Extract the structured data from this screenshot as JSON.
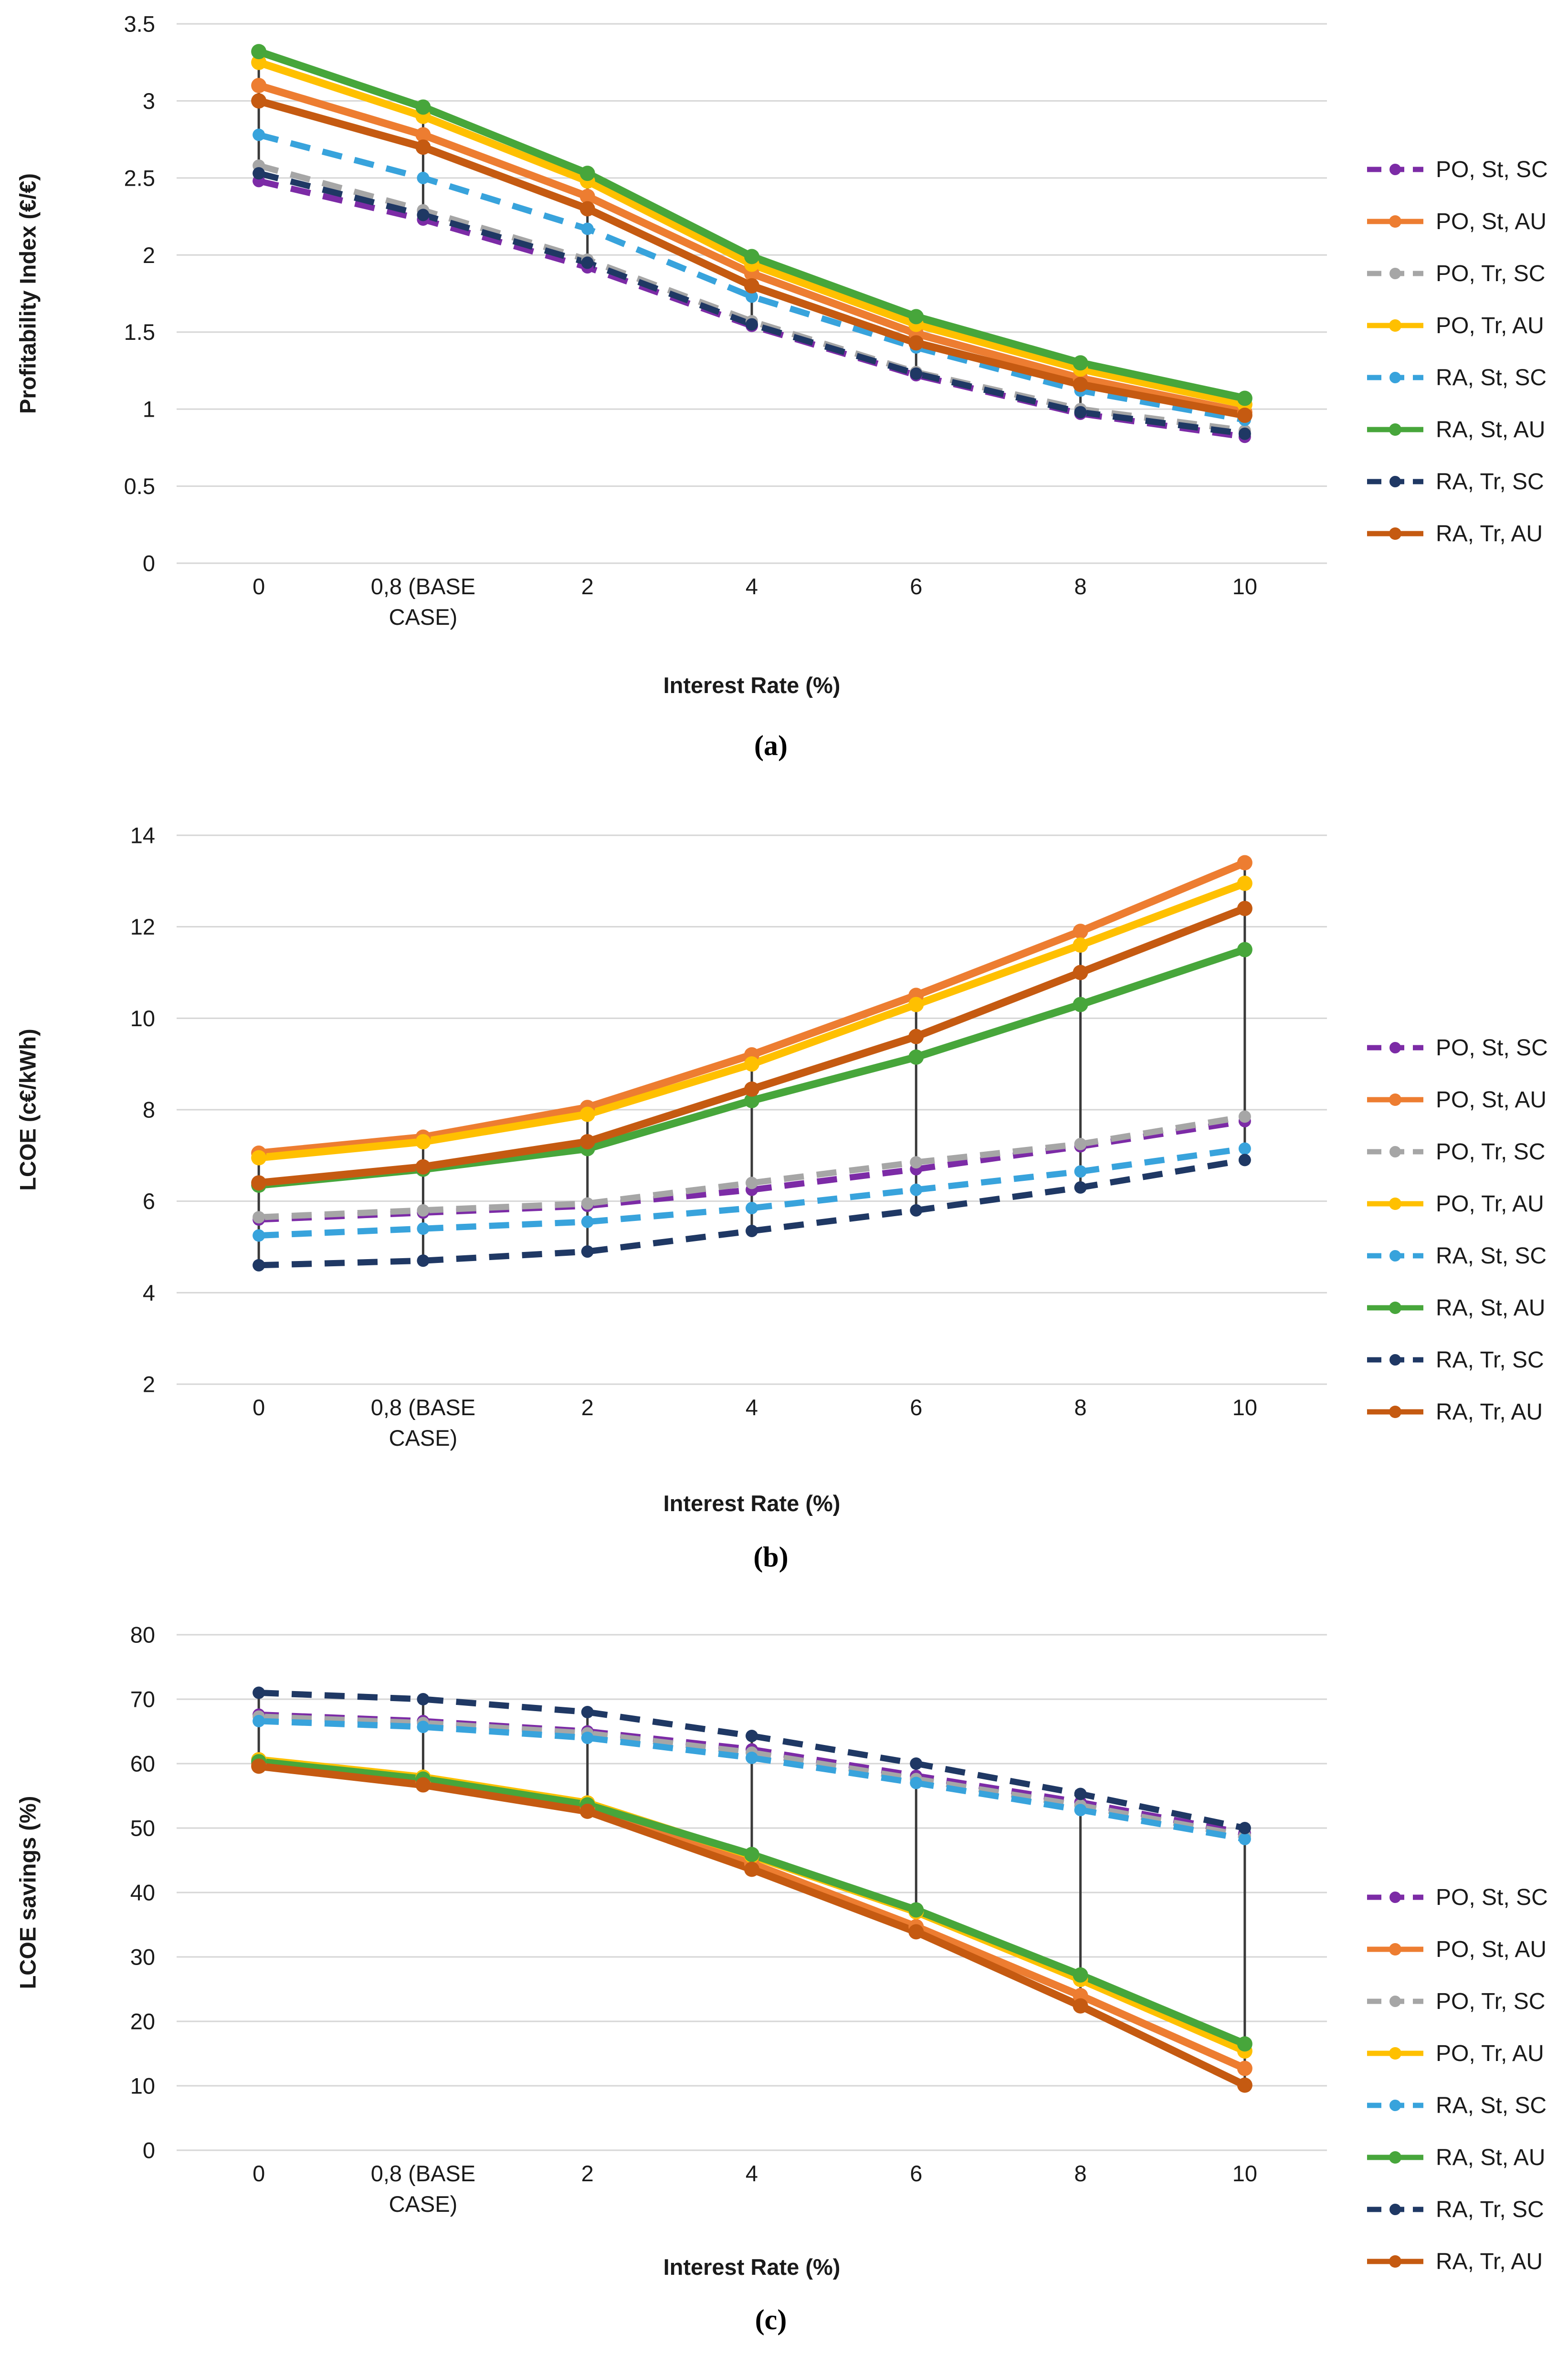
{
  "figure": {
    "background": "#ffffff",
    "x_axis_title": "Interest Rate (%)",
    "categories": [
      "0",
      "0,8 (BASE\nCASE)",
      "2",
      "4",
      "6",
      "8",
      "10"
    ],
    "gridline_color": "#d6d6d6",
    "highlow_line_color": "#3a3a3a"
  },
  "series_meta": [
    {
      "name": "PO, St, SC",
      "color": "#7c2ba6",
      "dashed": true
    },
    {
      "name": "PO, St, AU",
      "color": "#ed7d31",
      "dashed": false
    },
    {
      "name": "PO, Tr, SC",
      "color": "#a6a6a6",
      "dashed": true
    },
    {
      "name": "PO, Tr, AU",
      "color": "#ffc000",
      "dashed": false
    },
    {
      "name": "RA, St, SC",
      "color": "#38a3dc",
      "dashed": true
    },
    {
      "name": "RA, St, AU",
      "color": "#47a63b",
      "dashed": false
    },
    {
      "name": "RA, Tr, SC",
      "color": "#1f3864",
      "dashed": true
    },
    {
      "name": "RA, Tr, AU",
      "color": "#c55a11",
      "dashed": false
    }
  ],
  "chart_data": [
    {
      "id": "a",
      "type": "line",
      "caption": "(a)",
      "ylabel": "Profitability Index (€/€)",
      "xlabel": "Interest Rate (%)",
      "ylim": [
        0,
        3.5
      ],
      "ytick_step": 0.5,
      "ytick_labels": [
        "0",
        "0.5",
        "1",
        "1.5",
        "2",
        "2.5",
        "3",
        "3.5"
      ],
      "categories": [
        "0",
        "0,8 (BASE\nCASE)",
        "2",
        "4",
        "6",
        "8",
        "10"
      ],
      "grid": true,
      "legend_position": "right",
      "series": [
        {
          "name": "PO, St, SC",
          "values": [
            2.48,
            2.23,
            1.92,
            1.54,
            1.22,
            0.97,
            0.82
          ]
        },
        {
          "name": "PO, St, AU",
          "values": [
            3.1,
            2.78,
            2.38,
            1.88,
            1.49,
            1.2,
            0.98
          ]
        },
        {
          "name": "PO, Tr, SC",
          "values": [
            2.58,
            2.29,
            1.97,
            1.57,
            1.24,
            1.0,
            0.86
          ]
        },
        {
          "name": "PO, Tr, AU",
          "values": [
            3.25,
            2.9,
            2.48,
            1.94,
            1.55,
            1.26,
            1.03
          ]
        },
        {
          "name": "RA, St, SC",
          "values": [
            2.78,
            2.5,
            2.17,
            1.73,
            1.4,
            1.12,
            0.93
          ]
        },
        {
          "name": "RA, St, AU",
          "values": [
            3.32,
            2.96,
            2.53,
            1.99,
            1.6,
            1.3,
            1.07
          ]
        },
        {
          "name": "RA, Tr, SC",
          "values": [
            2.53,
            2.26,
            1.95,
            1.55,
            1.23,
            0.98,
            0.84
          ]
        },
        {
          "name": "RA, Tr, AU",
          "values": [
            3.0,
            2.7,
            2.3,
            1.8,
            1.43,
            1.16,
            0.96
          ]
        }
      ]
    },
    {
      "id": "b",
      "type": "line",
      "caption": "(b)",
      "ylabel": "LCOE (c€/kWh)",
      "xlabel": "Interest Rate (%)",
      "ylim": [
        2,
        14
      ],
      "ytick_step": 2,
      "ytick_labels": [
        "2",
        "4",
        "6",
        "8",
        "10",
        "12",
        "14"
      ],
      "categories": [
        "0",
        "0,8 (BASE\nCASE)",
        "2",
        "4",
        "6",
        "8",
        "10"
      ],
      "grid": true,
      "legend_position": "right",
      "series": [
        {
          "name": "PO, St, SC",
          "values": [
            5.6,
            5.75,
            5.9,
            6.25,
            6.7,
            7.2,
            7.75
          ]
        },
        {
          "name": "PO, St, AU",
          "values": [
            7.05,
            7.4,
            8.05,
            9.2,
            10.5,
            11.9,
            13.4
          ]
        },
        {
          "name": "PO, Tr, SC",
          "values": [
            5.65,
            5.8,
            5.95,
            6.4,
            6.85,
            7.25,
            7.85
          ]
        },
        {
          "name": "PO, Tr, AU",
          "values": [
            6.95,
            7.3,
            7.9,
            9.0,
            10.3,
            11.6,
            12.95
          ]
        },
        {
          "name": "RA, St, SC",
          "values": [
            5.25,
            5.4,
            5.55,
            5.85,
            6.25,
            6.65,
            7.15
          ]
        },
        {
          "name": "RA, St, AU",
          "values": [
            6.35,
            6.7,
            7.15,
            8.2,
            9.15,
            10.3,
            11.5
          ]
        },
        {
          "name": "RA, Tr, SC",
          "values": [
            4.6,
            4.7,
            4.9,
            5.35,
            5.8,
            6.3,
            6.9
          ]
        },
        {
          "name": "RA, Tr, AU",
          "values": [
            6.4,
            6.75,
            7.3,
            8.45,
            9.6,
            11.0,
            12.4
          ]
        }
      ]
    },
    {
      "id": "c",
      "type": "line",
      "caption": "(c)",
      "ylabel": "LCOE savings (%)",
      "xlabel": "Interest Rate (%)",
      "ylim": [
        0,
        80
      ],
      "ytick_step": 10,
      "ytick_labels": [
        "0",
        "10",
        "20",
        "30",
        "40",
        "50",
        "60",
        "70",
        "80"
      ],
      "categories": [
        "0",
        "0,8 (BASE\nCASE)",
        "2",
        "4",
        "6",
        "8",
        "10"
      ],
      "grid": true,
      "legend_position": "right",
      "series": [
        {
          "name": "PO, St, SC",
          "values": [
            67.6,
            66.6,
            65.0,
            62.2,
            58.1,
            54.0,
            49.2
          ]
        },
        {
          "name": "PO, St, AU",
          "values": [
            60.0,
            57.1,
            53.1,
            44.5,
            34.7,
            24.0,
            12.7
          ]
        },
        {
          "name": "PO, Tr, SC",
          "values": [
            67.3,
            66.3,
            64.7,
            61.7,
            57.6,
            53.5,
            48.8
          ]
        },
        {
          "name": "PO, Tr, AU",
          "values": [
            60.6,
            57.9,
            53.9,
            45.7,
            37.0,
            26.5,
            15.4
          ]
        },
        {
          "name": "RA, St, SC",
          "values": [
            66.6,
            65.7,
            64.0,
            60.9,
            57.0,
            52.8,
            48.3
          ]
        },
        {
          "name": "RA, St, AU",
          "values": [
            60.3,
            57.6,
            53.6,
            45.9,
            37.3,
            27.2,
            16.5
          ]
        },
        {
          "name": "RA, Tr, SC",
          "values": [
            71.0,
            70.0,
            68.0,
            64.3,
            60.0,
            55.3,
            50.0
          ]
        },
        {
          "name": "RA, Tr, AU",
          "values": [
            59.6,
            56.7,
            52.6,
            43.6,
            33.9,
            22.4,
            10.1
          ]
        }
      ]
    }
  ]
}
